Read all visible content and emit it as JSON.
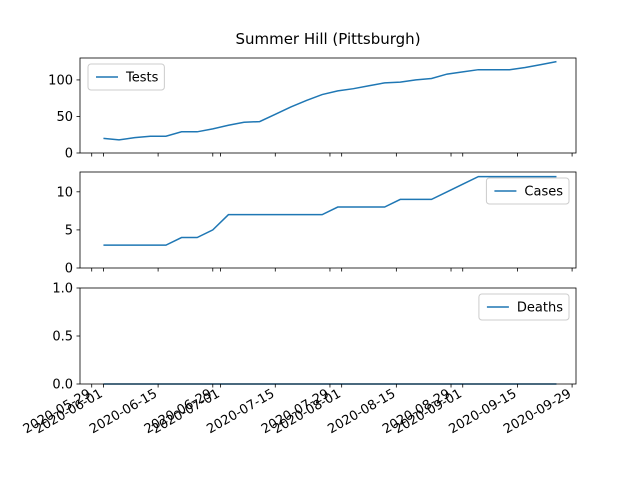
{
  "chart_data": [
    {
      "type": "line",
      "title": "Summer Hill (Pittsburgh)",
      "x": [
        "2020-06-01",
        "2020-06-05",
        "2020-06-09",
        "2020-06-13",
        "2020-06-17",
        "2020-06-21",
        "2020-06-25",
        "2020-06-29",
        "2020-07-03",
        "2020-07-07",
        "2020-07-11",
        "2020-07-15",
        "2020-07-19",
        "2020-07-23",
        "2020-07-27",
        "2020-07-31",
        "2020-08-04",
        "2020-08-08",
        "2020-08-12",
        "2020-08-16",
        "2020-08-20",
        "2020-08-24",
        "2020-08-28",
        "2020-09-01",
        "2020-09-05",
        "2020-09-09",
        "2020-09-13",
        "2020-09-17",
        "2020-09-21",
        "2020-09-25"
      ],
      "series": [
        {
          "name": "Tests",
          "color": "#1f77b4",
          "values": [
            20,
            18,
            21,
            23,
            23,
            29,
            29,
            33,
            38,
            42,
            43,
            53,
            63,
            72,
            80,
            85,
            88,
            92,
            96,
            97,
            100,
            102,
            108,
            111,
            114,
            114,
            114,
            117,
            121,
            125
          ]
        }
      ],
      "xlim": [
        "2020-05-26",
        "2020-09-30"
      ],
      "xticks": [
        "2020-05-29",
        "2020-06-01",
        "2020-06-15",
        "2020-06-29",
        "2020-07-01",
        "2020-07-15",
        "2020-07-29",
        "2020-08-01",
        "2020-08-15",
        "2020-08-29",
        "2020-09-01",
        "2020-09-15",
        "2020-09-29"
      ],
      "ylim": [
        0,
        130
      ],
      "yticks": [
        0,
        50,
        100
      ],
      "legend": "upper left"
    },
    {
      "type": "line",
      "x": [
        "2020-06-01",
        "2020-06-05",
        "2020-06-09",
        "2020-06-13",
        "2020-06-17",
        "2020-06-21",
        "2020-06-25",
        "2020-06-29",
        "2020-07-03",
        "2020-07-07",
        "2020-07-11",
        "2020-07-15",
        "2020-07-19",
        "2020-07-23",
        "2020-07-27",
        "2020-07-31",
        "2020-08-04",
        "2020-08-08",
        "2020-08-12",
        "2020-08-16",
        "2020-08-20",
        "2020-08-24",
        "2020-08-28",
        "2020-09-01",
        "2020-09-05",
        "2020-09-09",
        "2020-09-13",
        "2020-09-17",
        "2020-09-21",
        "2020-09-25"
      ],
      "series": [
        {
          "name": "Cases",
          "color": "#1f77b4",
          "values": [
            3,
            3,
            3,
            3,
            3,
            4,
            4,
            5,
            7,
            7,
            7,
            7,
            7,
            7,
            7,
            8,
            8,
            8,
            8,
            9,
            9,
            9,
            10,
            11,
            12,
            12,
            12,
            12,
            12,
            12
          ]
        }
      ],
      "xlim": [
        "2020-05-26",
        "2020-09-30"
      ],
      "xticks": [
        "2020-05-29",
        "2020-06-01",
        "2020-06-15",
        "2020-06-29",
        "2020-07-01",
        "2020-07-15",
        "2020-07-29",
        "2020-08-01",
        "2020-08-15",
        "2020-08-29",
        "2020-09-01",
        "2020-09-15",
        "2020-09-29"
      ],
      "ylim": [
        0,
        12.6
      ],
      "yticks": [
        0,
        5,
        10
      ],
      "legend": "upper right"
    },
    {
      "type": "line",
      "x": [
        "2020-06-01",
        "2020-06-05",
        "2020-06-09",
        "2020-06-13",
        "2020-06-17",
        "2020-06-21",
        "2020-06-25",
        "2020-06-29",
        "2020-07-03",
        "2020-07-07",
        "2020-07-11",
        "2020-07-15",
        "2020-07-19",
        "2020-07-23",
        "2020-07-27",
        "2020-07-31",
        "2020-08-04",
        "2020-08-08",
        "2020-08-12",
        "2020-08-16",
        "2020-08-20",
        "2020-08-24",
        "2020-08-28",
        "2020-09-01",
        "2020-09-05",
        "2020-09-09",
        "2020-09-13",
        "2020-09-17",
        "2020-09-21",
        "2020-09-25"
      ],
      "series": [
        {
          "name": "Deaths",
          "color": "#1f77b4",
          "values": [
            0,
            0,
            0,
            0,
            0,
            0,
            0,
            0,
            0,
            0,
            0,
            0,
            0,
            0,
            0,
            0,
            0,
            0,
            0,
            0,
            0,
            0,
            0,
            0,
            0,
            0,
            0,
            0,
            0,
            0
          ]
        }
      ],
      "xlim": [
        "2020-05-26",
        "2020-09-30"
      ],
      "xticks": [
        "2020-05-29",
        "2020-06-01",
        "2020-06-15",
        "2020-06-29",
        "2020-07-01",
        "2020-07-15",
        "2020-07-29",
        "2020-08-01",
        "2020-08-15",
        "2020-08-29",
        "2020-09-01",
        "2020-09-15",
        "2020-09-29"
      ],
      "ylim": [
        0,
        1
      ],
      "yticks": [
        {
          "value": 0,
          "label": "0.0"
        },
        0.5,
        {
          "value": 1,
          "label": "1.0"
        }
      ],
      "legend": "upper right",
      "xtick_labels": true
    }
  ]
}
